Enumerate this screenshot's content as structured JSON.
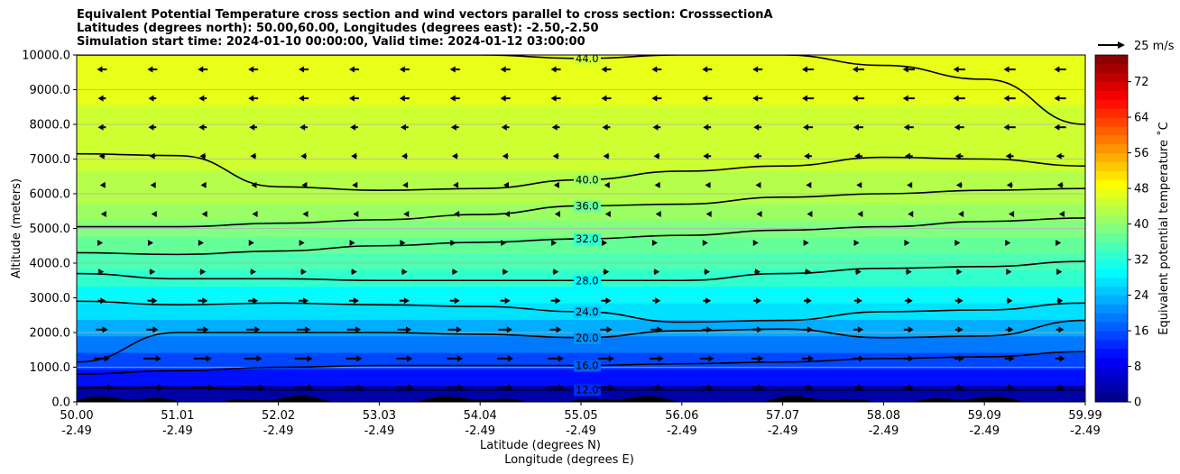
{
  "chart_data": {
    "type": "heatmap",
    "title_lines": [
      "Equivalent Potential Temperature cross section and wind vectors parallel to cross section: CrosssectionA",
      "Latitudes (degrees north): 50.00,60.00, Longitudes (degrees east): -2.50,-2.50",
      "Simulation start time: 2024-01-10 00:00:00, Valid time: 2024-01-12 03:00:00"
    ],
    "xlabel_line1": "Latitude (degrees N)",
    "xlabel_line2": "Longitude (degrees E)",
    "ylabel": "Altitude (meters)",
    "x_ticks": [
      {
        "lat": "50.00",
        "lon": "-2.49"
      },
      {
        "lat": "51.01",
        "lon": "-2.49"
      },
      {
        "lat": "52.02",
        "lon": "-2.49"
      },
      {
        "lat": "53.03",
        "lon": "-2.49"
      },
      {
        "lat": "54.04",
        "lon": "-2.49"
      },
      {
        "lat": "55.05",
        "lon": "-2.49"
      },
      {
        "lat": "56.06",
        "lon": "-2.49"
      },
      {
        "lat": "57.07",
        "lon": "-2.49"
      },
      {
        "lat": "58.08",
        "lon": "-2.49"
      },
      {
        "lat": "59.09",
        "lon": "-2.49"
      },
      {
        "lat": "59.99",
        "lon": "-2.49"
      }
    ],
    "xlim": [
      50.0,
      59.99
    ],
    "y_ticks": [
      "0.0",
      "1000.0",
      "2000.0",
      "3000.0",
      "4000.0",
      "5000.0",
      "6000.0",
      "7000.0",
      "8000.0",
      "9000.0",
      "10000.0"
    ],
    "ylim": [
      0,
      10000
    ],
    "grid": "horizontal",
    "colorbar": {
      "label": "Equivalent potential temperature ˚C",
      "ticks": [
        "0",
        "8",
        "16",
        "24",
        "32",
        "40",
        "48",
        "56",
        "64",
        "72"
      ],
      "range": [
        0,
        78
      ],
      "colormap": "jet"
    },
    "quiver_key": {
      "label": "25 m/s"
    },
    "contours": [
      {
        "value": 12.0,
        "label": "12.0",
        "altitude": [
          400,
          400,
          350,
          350,
          350,
          350,
          350,
          350,
          350,
          350,
          350
        ]
      },
      {
        "value": 16.0,
        "label": "16.0",
        "altitude": [
          800,
          900,
          1000,
          1050,
          1050,
          1050,
          1100,
          1150,
          1250,
          1300,
          1450
        ]
      },
      {
        "value": 20.0,
        "label": "20.0",
        "altitude": [
          1150,
          2000,
          2000,
          2000,
          1950,
          1850,
          2050,
          2100,
          1850,
          1900,
          2350
        ]
      },
      {
        "value": 24.0,
        "label": "24.0",
        "altitude": [
          2900,
          2800,
          2850,
          2800,
          2750,
          2600,
          2300,
          2350,
          2600,
          2650,
          2850
        ]
      },
      {
        "value": 28.0,
        "label": "28.0",
        "altitude": [
          3700,
          3550,
          3550,
          3500,
          3500,
          3500,
          3500,
          3700,
          3850,
          3900,
          4050
        ]
      },
      {
        "value": 32.0,
        "label": "32.0",
        "altitude": [
          4300,
          4250,
          4350,
          4500,
          4600,
          4700,
          4800,
          4950,
          5050,
          5200,
          5300
        ]
      },
      {
        "value": 36.0,
        "label": "36.0",
        "altitude": [
          5050,
          5050,
          5150,
          5250,
          5400,
          5650,
          5700,
          5900,
          6000,
          6100,
          6150
        ]
      },
      {
        "value": 40.0,
        "label": "40.0",
        "altitude": [
          7150,
          7100,
          6200,
          6100,
          6150,
          6400,
          6650,
          6800,
          7050,
          7000,
          6800
        ]
      },
      {
        "value": 44.0,
        "label": "44.0",
        "altitude": [
          10000,
          10000,
          10000,
          10000,
          10000,
          9900,
          10000,
          10000,
          9700,
          9300,
          8000
        ]
      }
    ],
    "theta_e_columns": [
      [
        2,
        10,
        14,
        18,
        22,
        26,
        29,
        32,
        35,
        37,
        39,
        41,
        42,
        43,
        44,
        44.5,
        45,
        45.5,
        46,
        46.5,
        47
      ],
      [
        2,
        10,
        14,
        18,
        22,
        26,
        29,
        32,
        35,
        37,
        39,
        41,
        42,
        43,
        44,
        44.5,
        45,
        45.5,
        46,
        46.5,
        47
      ],
      [
        2,
        10,
        14,
        18,
        22,
        26,
        29,
        32,
        35,
        37,
        39,
        41,
        42,
        43,
        44,
        44.5,
        45,
        45.5,
        46,
        46.5,
        47
      ],
      [
        2,
        10,
        14,
        18,
        22,
        26,
        29,
        32,
        35,
        37,
        39,
        41,
        42,
        43,
        44,
        44.5,
        45,
        45.5,
        46,
        46.5,
        47
      ],
      [
        2,
        10,
        14,
        18,
        22,
        26,
        29,
        32,
        35,
        37,
        39,
        41,
        42,
        43,
        44,
        44.5,
        45,
        45.5,
        46,
        46.5,
        47
      ],
      [
        2,
        10,
        14,
        18,
        22,
        26,
        29,
        32,
        35,
        37,
        39,
        41,
        42,
        43,
        44,
        44.5,
        45,
        45.5,
        46,
        46.5,
        47
      ],
      [
        2,
        10,
        14,
        18,
        22,
        26,
        29,
        32,
        35,
        37,
        39,
        41,
        42,
        43,
        44,
        44.5,
        45,
        45.5,
        46,
        46.5,
        47
      ],
      [
        2,
        10,
        14,
        18,
        22,
        26,
        29,
        32,
        35,
        37,
        39,
        41,
        42,
        43,
        44,
        44.5,
        45,
        45.5,
        46,
        46.5,
        47
      ],
      [
        2,
        10,
        14,
        18,
        22,
        26,
        29,
        32,
        35,
        37,
        39,
        41,
        42,
        43,
        44,
        44.5,
        45,
        45.5,
        46,
        46.5,
        47
      ],
      [
        2,
        10,
        14,
        18,
        22,
        26,
        29,
        32,
        35,
        37,
        39,
        41,
        42,
        43,
        44,
        44.5,
        45,
        45.5,
        46,
        46.5,
        47
      ],
      [
        2,
        10,
        14,
        18,
        22,
        26,
        29,
        32,
        35,
        37,
        39,
        41,
        42,
        43,
        44,
        44.5,
        45,
        45.5,
        46,
        46.5,
        47
      ]
    ],
    "wind_u": [
      [
        11,
        11,
        11,
        11,
        10,
        9,
        9,
        9,
        8,
        8,
        8,
        6,
        6,
        6,
        5,
        5,
        5,
        4,
        4,
        4
      ],
      [
        8,
        9,
        9,
        9,
        9,
        8,
        8,
        8,
        8,
        8,
        8,
        7,
        7,
        6,
        6,
        6,
        5,
        5,
        5,
        5
      ],
      [
        6,
        6,
        6,
        7,
        7,
        7,
        7,
        7,
        7,
        6,
        6,
        6,
        5,
        5,
        5,
        5,
        5,
        4,
        4,
        4
      ],
      [
        4,
        5,
        5,
        5,
        5,
        5,
        5,
        5,
        5,
        5,
        5,
        4,
        4,
        4,
        4,
        4,
        4,
        4,
        3,
        3
      ],
      [
        2,
        3,
        3,
        3,
        3,
        3,
        3,
        3,
        3,
        3,
        3,
        3,
        3,
        3,
        3,
        3,
        3,
        3,
        2,
        2
      ],
      [
        1,
        1,
        1,
        1,
        1,
        1,
        1,
        1,
        1,
        1,
        1,
        1,
        1,
        1,
        1,
        1,
        1,
        1,
        1,
        1
      ],
      [
        -1,
        -1,
        -1,
        -1,
        -1,
        -1,
        -1,
        -1,
        -1,
        -1,
        -1,
        -1,
        -1,
        -1,
        -1,
        -1,
        -1,
        -1,
        -1,
        -1
      ],
      [
        -2,
        -2,
        -2,
        -2,
        -2,
        -2,
        -2,
        -2,
        -2,
        -2,
        -2,
        -2,
        -2,
        -2,
        -2,
        -2,
        -2,
        -3,
        -3,
        -3
      ],
      [
        -3,
        -3,
        -3,
        -3,
        -3,
        -3,
        -3,
        -3,
        -3,
        -3,
        -3,
        -3,
        -4,
        -4,
        -4,
        -4,
        -4,
        -4,
        -4,
        -4
      ],
      [
        -4,
        -4,
        -4,
        -4,
        -4,
        -4,
        -4,
        -4,
        -4,
        -4,
        -4,
        -4,
        -4,
        -4,
        -5,
        -5,
        -5,
        -5,
        -6,
        -6
      ],
      [
        -4,
        -4,
        -4,
        -5,
        -5,
        -5,
        -5,
        -5,
        -5,
        -5,
        -5,
        -5,
        -5,
        -5,
        -6,
        -6,
        -6,
        -6,
        -6,
        -6
      ],
      [
        -5,
        -5,
        -5,
        -5,
        -5,
        -5,
        -5,
        -5,
        -5,
        -5,
        -5,
        -5,
        -5,
        -5,
        -6,
        -6,
        -6,
        -6,
        -6,
        -6
      ]
    ]
  }
}
